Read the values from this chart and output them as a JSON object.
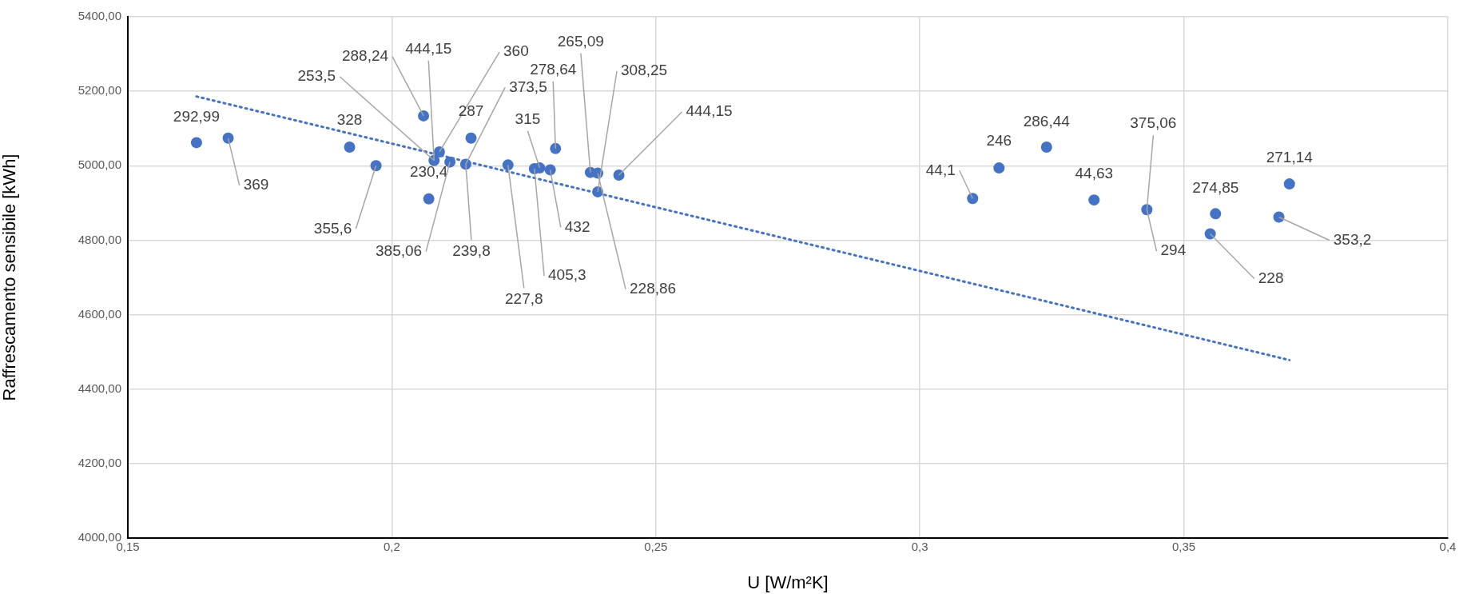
{
  "chart_data": {
    "type": "scatter",
    "xlabel": "U [W/m²K]",
    "ylabel": "Raffrescamento sensibile [kWh]",
    "xlim": [
      0.15,
      0.4
    ],
    "xticks": [
      {
        "value": 0.15,
        "label": "0,15"
      },
      {
        "value": 0.2,
        "label": "0,2"
      },
      {
        "value": 0.25,
        "label": "0,25"
      },
      {
        "value": 0.3,
        "label": "0,3"
      },
      {
        "value": 0.35,
        "label": "0,35"
      },
      {
        "value": 0.4,
        "label": "0,4"
      }
    ],
    "ylim": [
      4000,
      5400
    ],
    "yticks": [
      {
        "value": 4000,
        "label": "4000,00"
      },
      {
        "value": 4200,
        "label": "4200,00"
      },
      {
        "value": 4400,
        "label": "4400,00"
      },
      {
        "value": 4600,
        "label": "4600,00"
      },
      {
        "value": 4800,
        "label": "4800,00"
      },
      {
        "value": 5000,
        "label": "5000,00"
      },
      {
        "value": 5200,
        "label": "5200,00"
      },
      {
        "value": 5400,
        "label": "5400,00"
      }
    ],
    "grid": true,
    "marker": "circle",
    "series": [
      {
        "color": "#4472c4",
        "x": [
          0.163,
          0.169,
          0.192,
          0.197,
          0.206,
          0.207,
          0.208,
          0.209,
          0.211,
          0.214,
          0.215,
          0.222,
          0.227,
          0.228,
          0.23,
          0.231,
          0.2376,
          0.239,
          0.239,
          0.243,
          0.31,
          0.315,
          0.324,
          0.333,
          0.343,
          0.356,
          0.355,
          0.368,
          0.37
        ],
        "values": [
          5062,
          5074,
          5050,
          5000,
          5134,
          4911,
          5014,
          5037,
          5010,
          5004,
          5074,
          5002,
          4992,
          4994,
          4989,
          5046,
          4982,
          4980,
          4930,
          4975,
          4912,
          4994,
          5050,
          4908,
          4882,
          4871,
          4817,
          4862,
          4951
        ]
      },
      {
        "type": "line",
        "color": "#4472c4",
        "line_style": "dotted",
        "marker": "none",
        "x": [
          0.163,
          0.37
        ],
        "values": [
          5186,
          4478
        ]
      }
    ],
    "annotations": [
      {
        "text": "292,99",
        "x": 0.163,
        "y": 5062
      },
      {
        "text": "369",
        "x": 0.169,
        "y": 5074
      },
      {
        "text": "328",
        "x": 0.192,
        "y": 5050
      },
      {
        "text": "355,6",
        "x": 0.197,
        "y": 5000
      },
      {
        "text": "288,24",
        "x": 0.206,
        "y": 5134
      },
      {
        "text": "444,15",
        "x": 0.208,
        "y": 5014
      },
      {
        "text": "253,5",
        "x": 0.208,
        "y": 5014
      },
      {
        "text": "360",
        "x": 0.209,
        "y": 5037
      },
      {
        "text": "373,5",
        "x": 0.214,
        "y": 5004
      },
      {
        "text": "287",
        "x": 0.215,
        "y": 5074
      },
      {
        "text": "230,4",
        "x": 0.207,
        "y": 4911
      },
      {
        "text": "385,06",
        "x": 0.211,
        "y": 5010
      },
      {
        "text": "239,8",
        "x": 0.214,
        "y": 5004
      },
      {
        "text": "227,8",
        "x": 0.222,
        "y": 5002
      },
      {
        "text": "315",
        "x": 0.228,
        "y": 4994
      },
      {
        "text": "405,3",
        "x": 0.227,
        "y": 4992
      },
      {
        "text": "432",
        "x": 0.23,
        "y": 4989
      },
      {
        "text": "278,64",
        "x": 0.231,
        "y": 5046
      },
      {
        "text": "265,09",
        "x": 0.2376,
        "y": 4982
      },
      {
        "text": "308,25",
        "x": 0.239,
        "y": 4930
      },
      {
        "text": "228,86",
        "x": 0.239,
        "y": 4980
      },
      {
        "text": "444,15",
        "x": 0.243,
        "y": 4975
      },
      {
        "text": "44,1",
        "x": 0.31,
        "y": 4912
      },
      {
        "text": "246",
        "x": 0.315,
        "y": 4994
      },
      {
        "text": "286,44",
        "x": 0.324,
        "y": 5050
      },
      {
        "text": "44,63",
        "x": 0.333,
        "y": 4908
      },
      {
        "text": "375,06",
        "x": 0.343,
        "y": 4882
      },
      {
        "text": "294",
        "x": 0.343,
        "y": 4882
      },
      {
        "text": "274,85",
        "x": 0.356,
        "y": 4871
      },
      {
        "text": "228",
        "x": 0.355,
        "y": 4817
      },
      {
        "text": "271,14",
        "x": 0.37,
        "y": 4951
      },
      {
        "text": "353,2",
        "x": 0.368,
        "y": 4862
      }
    ]
  }
}
